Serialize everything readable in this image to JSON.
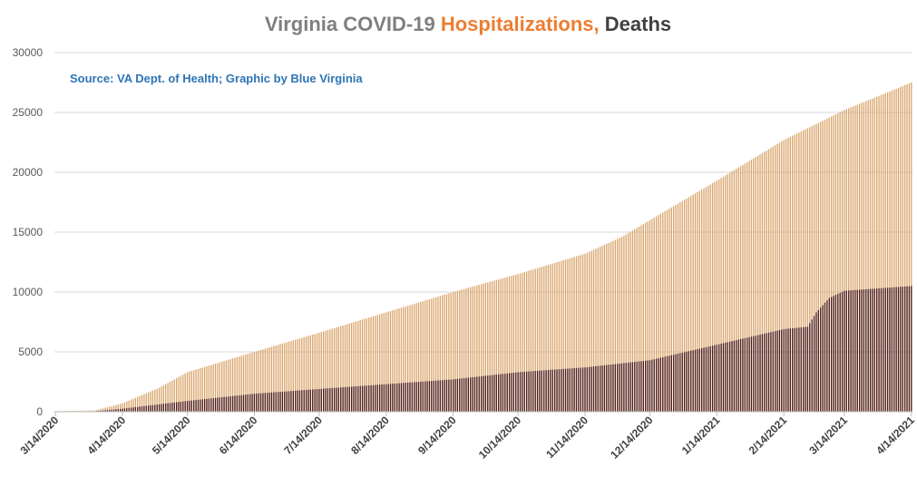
{
  "chart_data": {
    "type": "bar",
    "title_parts": [
      {
        "text": "Virginia COVID-19 ",
        "color": "#7f7f7f"
      },
      {
        "text": "Hospitalizations, ",
        "color": "#ed7d31"
      },
      {
        "text": "Deaths",
        "color": "#404040"
      }
    ],
    "source_note": "Source: VA Dept. of Health; Graphic by Blue Virginia",
    "source_color": "#2e75b6",
    "y_ticks": [
      0,
      5000,
      10000,
      15000,
      20000,
      25000,
      30000
    ],
    "ylim": [
      0,
      30000
    ],
    "x_tick_labels": [
      "3/14/2020",
      "4/14/2020",
      "5/14/2020",
      "6/14/2020",
      "7/14/2020",
      "8/14/2020",
      "9/14/2020",
      "10/14/2020",
      "11/14/2020",
      "12/14/2020",
      "1/14/2021",
      "2/14/2021",
      "3/14/2021",
      "4/14/2021"
    ],
    "x_tick_dates": [
      "2020-03-14",
      "2020-04-14",
      "2020-05-14",
      "2020-06-14",
      "2020-07-14",
      "2020-08-14",
      "2020-09-14",
      "2020-10-14",
      "2020-11-14",
      "2020-12-14",
      "2021-01-14",
      "2021-02-14",
      "2021-03-14",
      "2021-04-14"
    ],
    "date_range": [
      "2020-03-14",
      "2021-04-14"
    ],
    "grid": true,
    "series": [
      {
        "color": "#d9a46a",
        "anchors": [
          [
            "2020-03-14",
            50
          ],
          [
            "2020-04-01",
            100
          ],
          [
            "2020-04-14",
            700
          ],
          [
            "2020-05-01",
            2000
          ],
          [
            "2020-05-14",
            3300
          ],
          [
            "2020-06-14",
            5000
          ],
          [
            "2020-07-14",
            6600
          ],
          [
            "2020-08-14",
            8300
          ],
          [
            "2020-09-14",
            10000
          ],
          [
            "2020-10-14",
            11500
          ],
          [
            "2020-11-14",
            13200
          ],
          [
            "2020-12-01",
            14600
          ],
          [
            "2020-12-14",
            16000
          ],
          [
            "2021-01-14",
            19300
          ],
          [
            "2021-02-14",
            22700
          ],
          [
            "2021-03-14",
            25200
          ],
          [
            "2021-04-14",
            27500
          ]
        ]
      },
      {
        "color": "#4a1a17",
        "anchors": [
          [
            "2020-03-14",
            0
          ],
          [
            "2020-04-01",
            40
          ],
          [
            "2020-04-14",
            250
          ],
          [
            "2020-05-14",
            900
          ],
          [
            "2020-06-14",
            1500
          ],
          [
            "2020-07-14",
            1900
          ],
          [
            "2020-08-14",
            2300
          ],
          [
            "2020-09-14",
            2700
          ],
          [
            "2020-10-14",
            3300
          ],
          [
            "2020-11-14",
            3700
          ],
          [
            "2020-12-14",
            4300
          ],
          [
            "2021-01-14",
            5600
          ],
          [
            "2021-02-14",
            6900
          ],
          [
            "2021-02-25",
            7100
          ],
          [
            "2021-03-01",
            8300
          ],
          [
            "2021-03-07",
            9500
          ],
          [
            "2021-03-14",
            10100
          ],
          [
            "2021-04-14",
            10500
          ]
        ]
      }
    ]
  }
}
